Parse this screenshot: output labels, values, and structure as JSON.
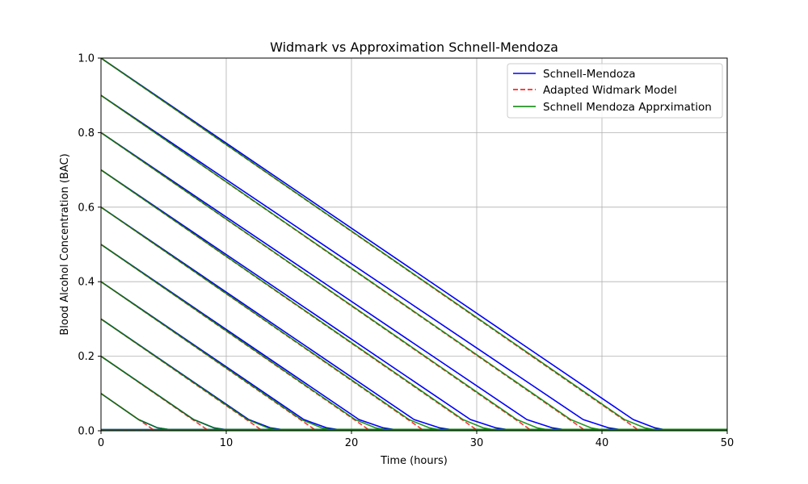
{
  "chart_data": {
    "type": "line",
    "title": "Widmark vs Approximation Schnell-Mendoza",
    "xlabel": "Time (hours)",
    "ylabel": "Blood Alcohol Concentration (BAC)",
    "xlim": [
      0,
      50
    ],
    "ylim": [
      0,
      1.0
    ],
    "xticks": [
      "0",
      "10",
      "20",
      "30",
      "40",
      "50"
    ],
    "yticks": [
      "0.0",
      "0.2",
      "0.4",
      "0.6",
      "0.8",
      "1.0"
    ],
    "grid": true,
    "legend_position": "top-right",
    "initial_bac": [
      0.0,
      0.1,
      0.2,
      0.3,
      0.4,
      0.5,
      0.6,
      0.7,
      0.8,
      0.9,
      1.0
    ],
    "series": [
      {
        "name": "Schnell-Mendoza",
        "color": "#0000ff",
        "style": "solid",
        "x": [
          [
            0,
            50
          ],
          [
            0,
            3,
            4.5,
            5.5,
            6.5,
            50
          ],
          [
            0,
            7.4,
            9,
            10,
            11,
            50
          ],
          [
            0,
            11.8,
            13.5,
            14.5,
            15.5,
            50
          ],
          [
            0,
            16.2,
            18,
            19,
            20,
            50
          ],
          [
            0,
            20.6,
            22.5,
            23.5,
            24.5,
            50
          ],
          [
            0,
            25,
            27,
            28,
            29,
            50
          ],
          [
            0,
            29.5,
            31.5,
            32.5,
            33.5,
            50
          ],
          [
            0,
            34,
            36,
            37,
            38,
            50
          ],
          [
            0,
            38.5,
            40.5,
            41.5,
            42.5,
            50
          ],
          [
            0,
            42.5,
            44.2,
            45,
            45.6,
            50
          ]
        ],
        "y": [
          [
            0.003,
            0.003
          ],
          [
            0.1,
            0.03,
            0.008,
            0.003,
            0.003,
            0.003
          ],
          [
            0.2,
            0.03,
            0.008,
            0.003,
            0.003,
            0.003
          ],
          [
            0.3,
            0.03,
            0.008,
            0.003,
            0.003,
            0.003
          ],
          [
            0.4,
            0.03,
            0.008,
            0.003,
            0.003,
            0.003
          ],
          [
            0.5,
            0.03,
            0.008,
            0.003,
            0.003,
            0.003
          ],
          [
            0.6,
            0.03,
            0.008,
            0.003,
            0.003,
            0.003
          ],
          [
            0.7,
            0.03,
            0.008,
            0.003,
            0.003,
            0.003
          ],
          [
            0.8,
            0.03,
            0.008,
            0.003,
            0.003,
            0.003
          ],
          [
            0.9,
            0.03,
            0.008,
            0.003,
            0.003,
            0.003
          ],
          [
            1.0,
            0.03,
            0.008,
            0.003,
            0.003,
            0.003
          ]
        ]
      },
      {
        "name": "Adapted Widmark Model",
        "color": "#ff0000",
        "style": "dashed",
        "x": [
          [
            0,
            50
          ],
          [
            0,
            4.3,
            50
          ],
          [
            0,
            8.6,
            50
          ],
          [
            0,
            12.9,
            50
          ],
          [
            0,
            17.2,
            50
          ],
          [
            0,
            21.5,
            50
          ],
          [
            0,
            25.8,
            50
          ],
          [
            0,
            30.1,
            50
          ],
          [
            0,
            34.4,
            50
          ],
          [
            0,
            38.7,
            50
          ],
          [
            0,
            43,
            50
          ]
        ],
        "y": [
          [
            0,
            0
          ],
          [
            0.1,
            0,
            0
          ],
          [
            0.2,
            0,
            0
          ],
          [
            0.3,
            0,
            0
          ],
          [
            0.4,
            0,
            0
          ],
          [
            0.5,
            0,
            0
          ],
          [
            0.6,
            0,
            0
          ],
          [
            0.7,
            0,
            0
          ],
          [
            0.8,
            0,
            0
          ],
          [
            0.9,
            0,
            0
          ],
          [
            1.0,
            0,
            0
          ]
        ]
      },
      {
        "name": "Schnell Mendoza Apprximation",
        "color": "#008000",
        "style": "solid",
        "x": [
          [
            0,
            50
          ],
          [
            0,
            3,
            4.5,
            5.5,
            6.5,
            50
          ],
          [
            0,
            7.4,
            9,
            9.8,
            10.6,
            50
          ],
          [
            0,
            11.7,
            13.3,
            14.1,
            14.9,
            50
          ],
          [
            0,
            16,
            17.6,
            18.4,
            19.2,
            50
          ],
          [
            0,
            20.3,
            21.9,
            22.7,
            23.5,
            50
          ],
          [
            0,
            24.6,
            26.2,
            27,
            27.8,
            50
          ],
          [
            0,
            28.9,
            30.5,
            31.3,
            32.1,
            50
          ],
          [
            0,
            33.2,
            34.8,
            35.6,
            36.4,
            50
          ],
          [
            0,
            37.5,
            39.1,
            39.9,
            40.7,
            50
          ],
          [
            0,
            41.8,
            43.4,
            44.2,
            45,
            50
          ]
        ],
        "y": [
          [
            0.003,
            0.003
          ],
          [
            0.1,
            0.03,
            0.008,
            0.003,
            0.003,
            0.003
          ],
          [
            0.2,
            0.03,
            0.008,
            0.003,
            0.003,
            0.003
          ],
          [
            0.3,
            0.03,
            0.008,
            0.003,
            0.003,
            0.003
          ],
          [
            0.4,
            0.03,
            0.008,
            0.003,
            0.003,
            0.003
          ],
          [
            0.5,
            0.03,
            0.008,
            0.003,
            0.003,
            0.003
          ],
          [
            0.6,
            0.03,
            0.008,
            0.003,
            0.003,
            0.003
          ],
          [
            0.7,
            0.03,
            0.008,
            0.003,
            0.003,
            0.003
          ],
          [
            0.8,
            0.03,
            0.008,
            0.003,
            0.003,
            0.003
          ],
          [
            0.9,
            0.03,
            0.008,
            0.003,
            0.003,
            0.003
          ],
          [
            1.0,
            0.03,
            0.008,
            0.003,
            0.003,
            0.003
          ]
        ]
      }
    ]
  }
}
